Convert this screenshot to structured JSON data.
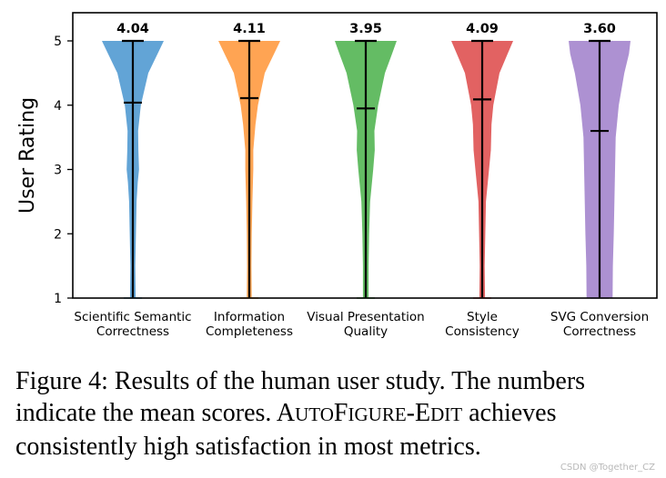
{
  "chart_data": {
    "type": "violin",
    "title": "",
    "xlabel": "",
    "ylabel": "User Rating",
    "ylim": [
      1,
      5
    ],
    "yticks": [
      1,
      2,
      3,
      4,
      5
    ],
    "grid": false,
    "categories": [
      [
        "Scientific Semantic",
        "Correctness"
      ],
      [
        "Information",
        "Completeness"
      ],
      [
        "Visual Presentation",
        "Quality"
      ],
      [
        "Style",
        "Consistency"
      ],
      [
        "SVG Conversion",
        "Correctness"
      ]
    ],
    "means": [
      4.04,
      4.11,
      3.95,
      4.09,
      3.6
    ],
    "mean_labels": [
      "4.04",
      "4.11",
      "3.95",
      "4.09",
      "3.60"
    ],
    "ranges": [
      [
        1,
        5
      ],
      [
        1,
        5
      ],
      [
        1,
        5
      ],
      [
        1,
        5
      ],
      [
        1,
        5
      ]
    ],
    "colors": [
      "#5a9fd4",
      "#ff9f4a",
      "#5cb85c",
      "#e05a5a",
      "#a98bd0"
    ],
    "density_profiles": [
      [
        [
          1.0,
          0.09
        ],
        [
          1.5,
          0.08
        ],
        [
          2.0,
          0.1
        ],
        [
          2.5,
          0.12
        ],
        [
          2.8,
          0.16
        ],
        [
          3.0,
          0.2
        ],
        [
          3.3,
          0.18
        ],
        [
          3.6,
          0.17
        ],
        [
          4.0,
          0.26
        ],
        [
          4.5,
          0.5
        ],
        [
          4.8,
          0.8
        ],
        [
          5.0,
          1.0
        ]
      ],
      [
        [
          1.0,
          0.08
        ],
        [
          1.5,
          0.07
        ],
        [
          2.0,
          0.08
        ],
        [
          2.5,
          0.1
        ],
        [
          3.0,
          0.13
        ],
        [
          3.3,
          0.13
        ],
        [
          3.7,
          0.2
        ],
        [
          4.0,
          0.28
        ],
        [
          4.5,
          0.5
        ],
        [
          4.8,
          0.8
        ],
        [
          5.0,
          1.0
        ]
      ],
      [
        [
          1.0,
          0.09
        ],
        [
          1.5,
          0.09
        ],
        [
          2.0,
          0.11
        ],
        [
          2.5,
          0.14
        ],
        [
          3.0,
          0.24
        ],
        [
          3.3,
          0.29
        ],
        [
          3.6,
          0.28
        ],
        [
          4.0,
          0.4
        ],
        [
          4.5,
          0.62
        ],
        [
          4.8,
          0.85
        ],
        [
          5.0,
          1.0
        ]
      ],
      [
        [
          1.0,
          0.09
        ],
        [
          1.5,
          0.08
        ],
        [
          2.0,
          0.1
        ],
        [
          2.5,
          0.12
        ],
        [
          3.0,
          0.22
        ],
        [
          3.3,
          0.28
        ],
        [
          3.7,
          0.3
        ],
        [
          4.0,
          0.36
        ],
        [
          4.5,
          0.56
        ],
        [
          4.8,
          0.82
        ],
        [
          5.0,
          1.0
        ]
      ],
      [
        [
          1.0,
          0.42
        ],
        [
          1.5,
          0.43
        ],
        [
          2.0,
          0.46
        ],
        [
          2.5,
          0.48
        ],
        [
          3.0,
          0.5
        ],
        [
          3.5,
          0.52
        ],
        [
          4.0,
          0.62
        ],
        [
          4.5,
          0.8
        ],
        [
          4.8,
          0.95
        ],
        [
          5.0,
          1.0
        ]
      ]
    ]
  },
  "caption": {
    "lead": "Figure 4: Results of the human user study. The numbers indicate the mean scores.",
    "system_name": [
      "A",
      "UTO",
      "F",
      "IGURE",
      "-E",
      "DIT"
    ],
    "tail": "achieves consistently high satisfaction in most metrics."
  },
  "watermark": "CSDN @Together_CZ"
}
